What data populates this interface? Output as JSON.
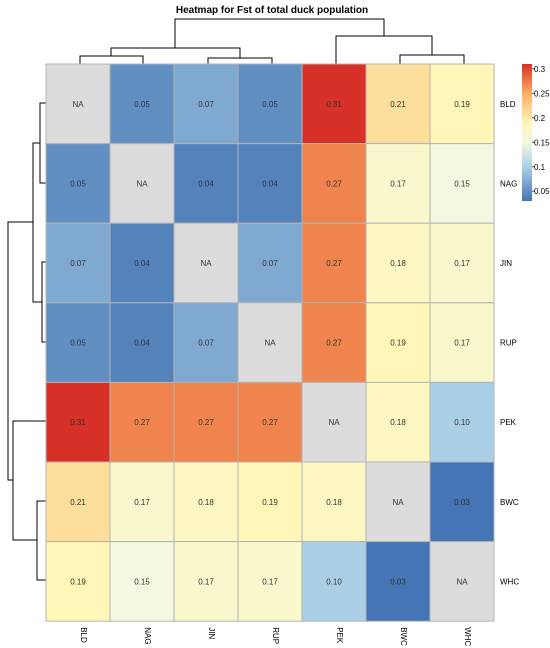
{
  "chart_data": {
    "type": "heatmap",
    "title": "Heatmap for Fst of total duck population",
    "rows": [
      "BLD",
      "NAG",
      "JIN",
      "RUP",
      "PEK",
      "BWC",
      "WHC"
    ],
    "columns": [
      "BLD",
      "NAG",
      "JIN",
      "RUP",
      "PEK",
      "BWC",
      "WHC"
    ],
    "values": [
      [
        null,
        0.05,
        0.07,
        0.05,
        0.31,
        0.21,
        0.19
      ],
      [
        0.05,
        null,
        0.04,
        0.04,
        0.27,
        0.17,
        0.15
      ],
      [
        0.07,
        0.04,
        null,
        0.07,
        0.27,
        0.18,
        0.17
      ],
      [
        0.05,
        0.04,
        0.07,
        null,
        0.27,
        0.19,
        0.17
      ],
      [
        0.31,
        0.27,
        0.27,
        0.27,
        null,
        0.18,
        0.1
      ],
      [
        0.21,
        0.17,
        0.18,
        0.19,
        0.18,
        null,
        0.03
      ],
      [
        0.19,
        0.15,
        0.17,
        0.17,
        0.1,
        0.03,
        null
      ]
    ],
    "labels": [
      [
        "NA",
        "0.05",
        "0.07",
        "0.05",
        "0.31",
        "0.21",
        "0.19"
      ],
      [
        "0.05",
        "NA",
        "0.04",
        "0.04",
        "0.27",
        "0.17",
        "0.15"
      ],
      [
        "0.07",
        "0.04",
        "NA",
        "0.07",
        "0.27",
        "0.18",
        "0.17"
      ],
      [
        "0.05",
        "0.04",
        "0.07",
        "NA",
        "0.27",
        "0.19",
        "0.17"
      ],
      [
        "0.31",
        "0.27",
        "0.27",
        "0.27",
        "NA",
        "0.18",
        "0.10"
      ],
      [
        "0.21",
        "0.17",
        "0.18",
        "0.19",
        "0.18",
        "NA",
        "0.03"
      ],
      [
        "0.19",
        "0.15",
        "0.17",
        "0.17",
        "0.10",
        "0.03",
        "NA"
      ]
    ],
    "na_color": "#dcdcdc",
    "color_scale": {
      "range": [
        0.03,
        0.31
      ],
      "stops": [
        {
          "value": 0.03,
          "color": "#4575b4"
        },
        {
          "value": 0.1,
          "color": "#abd0e6"
        },
        {
          "value": 0.15,
          "color": "#f3f8e0"
        },
        {
          "value": 0.19,
          "color": "#fff6b8"
        },
        {
          "value": 0.25,
          "color": "#fdae61"
        },
        {
          "value": 0.31,
          "color": "#d73027"
        }
      ]
    },
    "legend": {
      "position": "right",
      "ticks": [
        "0.3",
        "0.25",
        "0.2",
        "0.15",
        "0.1",
        "0.05"
      ],
      "tick_values": [
        0.3,
        0.25,
        0.2,
        0.15,
        0.1,
        0.05
      ]
    },
    "dendrogram": {
      "columns": "top",
      "rows": "left"
    }
  }
}
